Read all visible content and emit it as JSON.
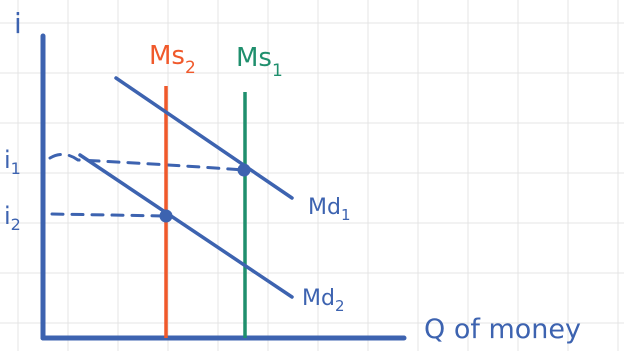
{
  "diagram": {
    "y_axis_label": "i",
    "x_axis_label": "Q of money",
    "interest_rates": [
      {
        "label": "i",
        "subscript": "1"
      },
      {
        "label": "i",
        "subscript": "2"
      }
    ],
    "supply_curves": [
      {
        "label": "Ms",
        "subscript": "2",
        "color": "#f0592b"
      },
      {
        "label": "Ms",
        "subscript": "1",
        "color": "#1f8f6d"
      }
    ],
    "demand_curves": [
      {
        "label": "Md",
        "subscript": "1"
      },
      {
        "label": "Md",
        "subscript": "2"
      }
    ],
    "colors": {
      "axis": "#3d63b0",
      "demand": "#3d63b0",
      "guide_dashes": "#3d63b0",
      "grid": "#e4e4e4",
      "text": "#3d63b0"
    }
  }
}
